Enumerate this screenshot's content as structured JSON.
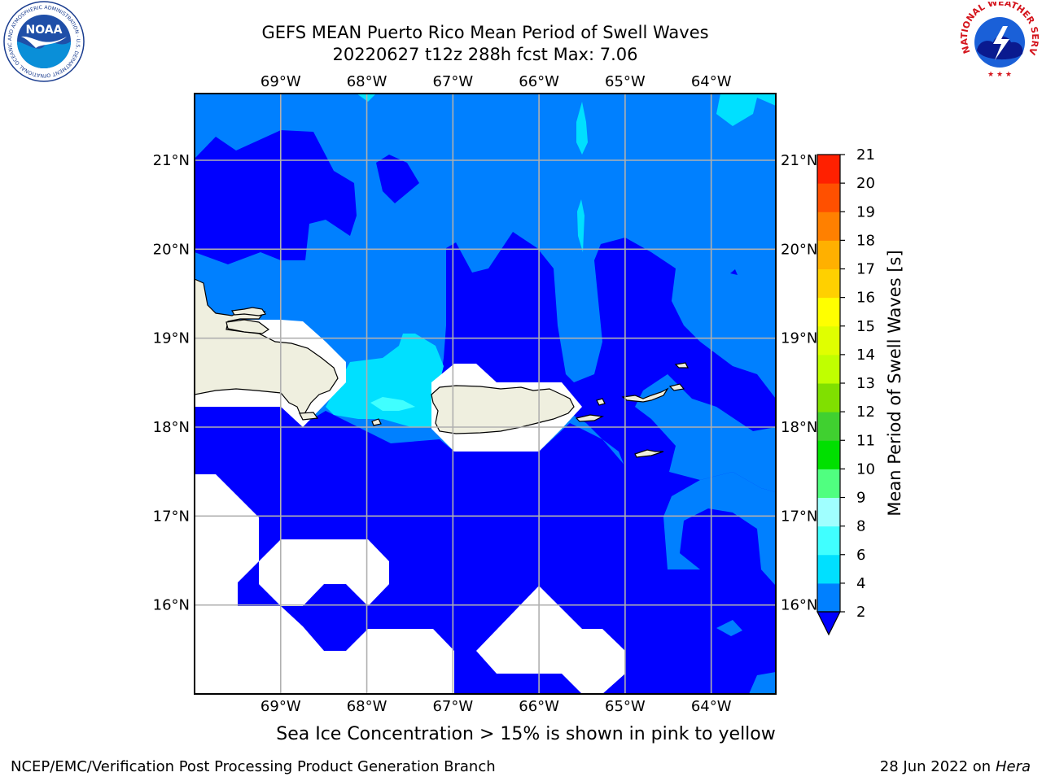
{
  "header": {
    "title_line1": "GEFS MEAN Puerto Rico Mean Period of Swell Waves",
    "title_line2": "20220627 t12z 288h fcst   Max: 7.06"
  },
  "logos": {
    "left": {
      "name": "NOAA",
      "ring_text": "NATIONAL OCEANIC AND ATMOSPHERIC ADMINISTRATION · U.S. DEPARTMENT OF COMMERCE"
    },
    "right": {
      "ring_text": "NATIONAL WEATHER SERVICE"
    }
  },
  "map": {
    "lon_labels": [
      "69°W",
      "68°W",
      "67°W",
      "66°W",
      "65°W",
      "64°W"
    ],
    "lat_labels": [
      "21°N",
      "20°N",
      "19°N",
      "18°N",
      "17°N",
      "16°N"
    ],
    "lon_values": [
      -69,
      -68,
      -67,
      -66,
      -65,
      -64
    ],
    "lat_values": [
      21,
      20,
      19,
      18,
      17,
      16
    ],
    "lon_range": [
      -70,
      -63.25
    ],
    "lat_range": [
      15,
      21.75
    ],
    "land_color": "#efefdf",
    "grid_color": "#b0b0b0"
  },
  "colorbar": {
    "label": "Mean Period of Swell Waves [s]",
    "ticks": [
      "2",
      "4",
      "6",
      "8",
      "9",
      "10",
      "11",
      "12",
      "13",
      "14",
      "15",
      "16",
      "17",
      "18",
      "19",
      "20",
      "21"
    ],
    "levels": [
      2,
      4,
      6,
      8,
      9,
      10,
      11,
      12,
      13,
      14,
      15,
      16,
      17,
      18,
      19,
      20,
      21
    ],
    "colors": [
      "#0080ff",
      "#00e0ff",
      "#40ffff",
      "#a0ffff",
      "#50ff80",
      "#00e000",
      "#40d030",
      "#80e000",
      "#c0ff00",
      "#e0ff00",
      "#ffff00",
      "#ffd000",
      "#ffb000",
      "#ff8000",
      "#ff5000",
      "#ff2000",
      "#ff0000"
    ],
    "under_color": "#0000ff"
  },
  "note": "Sea Ice Concentration > 15% is shown in pink to yellow",
  "footer": {
    "left": "NCEP/EMC/Verification Post Processing Product Generation Branch",
    "date": "28 Jun 2022 on",
    "host": "Hera"
  }
}
